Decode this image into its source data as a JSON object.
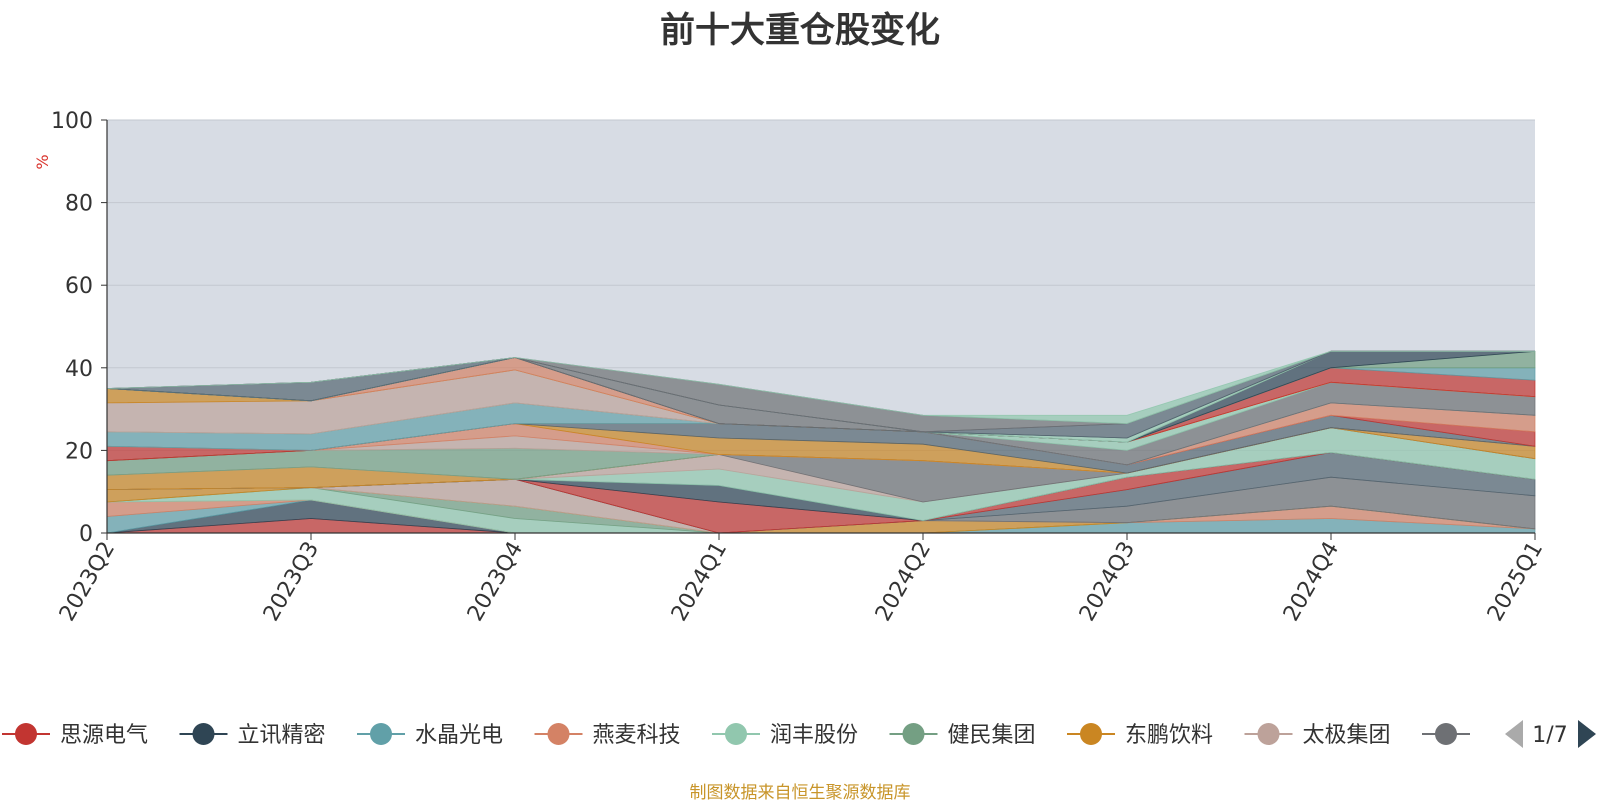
{
  "chart_data": {
    "type": "area",
    "title": "前十大重仓股变化",
    "ylabel": "%",
    "ylim": [
      0,
      100
    ],
    "yticks": [
      0,
      20,
      40,
      60,
      80,
      100
    ],
    "categories": [
      "2023Q2",
      "2023Q3",
      "2023Q4",
      "2024Q1",
      "2024Q2",
      "2024Q3",
      "2024Q4",
      "2025Q1"
    ],
    "series": [
      {
        "name": "思源电气",
        "color": "#c23531",
        "values": [
          0,
          3.5,
          0,
          0,
          0,
          0,
          0,
          0
        ]
      },
      {
        "name": "立讯精密",
        "color": "#2f4554",
        "values": [
          0,
          4.5,
          0,
          0,
          0,
          0,
          0,
          0
        ]
      },
      {
        "name": "水晶光电",
        "color": "#61a0a8",
        "values": [
          4,
          0,
          0,
          0,
          0,
          2.5,
          3.5,
          1
        ]
      },
      {
        "name": "燕麦科技",
        "color": "#d48265",
        "values": [
          3.5,
          0,
          0,
          0,
          0,
          0,
          3,
          0
        ]
      },
      {
        "name": "润丰股份",
        "color": "#91c7ae",
        "values": [
          0,
          3,
          3.5,
          0,
          0,
          0,
          0,
          0
        ]
      },
      {
        "name": "健民集团",
        "color": "#749f83",
        "values": [
          0,
          0,
          3,
          0,
          0,
          0,
          0,
          0
        ]
      },
      {
        "name": "东鹏饮料",
        "color": "#ca8622",
        "values": [
          3,
          0,
          0,
          0,
          3,
          0,
          0,
          0
        ]
      },
      {
        "name": "太极集团",
        "color": "#bda29a",
        "values": [
          0,
          0,
          6.5,
          0,
          0,
          0,
          0,
          0
        ]
      },
      {
        "name": "",
        "color": "#6e7074",
        "values": [
          0,
          0,
          0,
          0,
          0,
          4,
          7,
          8
        ]
      },
      {
        "name": "",
        "color": "#546570",
        "values": [
          0,
          0,
          0,
          0,
          0,
          4,
          6,
          4
        ]
      },
      {
        "name": "",
        "color": "#c23531",
        "values": [
          0,
          0,
          0,
          7.5,
          0,
          3,
          0,
          0
        ]
      },
      {
        "name": "",
        "color": "#2f4554",
        "values": [
          0,
          0,
          0,
          4,
          0,
          0,
          0,
          0
        ]
      },
      {
        "name": "",
        "color": "#91c7ae",
        "values": [
          0,
          0,
          0,
          4,
          4.5,
          1,
          6,
          5
        ]
      },
      {
        "name": "",
        "color": "#bda29a",
        "values": [
          0,
          0,
          0,
          3.5,
          0,
          0,
          0,
          0
        ]
      },
      {
        "name": "",
        "color": "#6e7074",
        "values": [
          0,
          0,
          0,
          0,
          10,
          0,
          0,
          0
        ]
      },
      {
        "name": "",
        "color": "#ca8622",
        "values": [
          3.5,
          5,
          0,
          0,
          0,
          0,
          0,
          3
        ]
      },
      {
        "name": "",
        "color": "#bda29a",
        "values": [
          0,
          0,
          0,
          0,
          0,
          0,
          0,
          0
        ]
      },
      {
        "name": "",
        "color": "#749f83",
        "values": [
          3.5,
          4,
          7.5,
          0,
          0,
          0,
          0,
          0
        ]
      },
      {
        "name": "",
        "color": "#bda29a",
        "values": [
          0,
          0,
          3,
          0,
          0,
          0,
          0,
          0
        ]
      },
      {
        "name": "",
        "color": "#d48265",
        "values": [
          0,
          0,
          3,
          0,
          0,
          0,
          0,
          0
        ]
      },
      {
        "name": "",
        "color": "#ca8622",
        "values": [
          0,
          0,
          0,
          4,
          4,
          0,
          0,
          0
        ]
      },
      {
        "name": "",
        "color": "#546570",
        "values": [
          0,
          0,
          0,
          3.5,
          3,
          2,
          3,
          0
        ]
      },
      {
        "name": "",
        "color": "#c23531",
        "values": [
          3.5,
          0,
          0,
          0,
          0,
          0,
          0,
          3.5
        ]
      },
      {
        "name": "",
        "color": "#d48265",
        "values": [
          0,
          0,
          0,
          0,
          0,
          0,
          3,
          4
        ]
      },
      {
        "name": "",
        "color": "#61a0a8",
        "values": [
          3.5,
          4,
          5,
          0,
          0,
          0,
          0,
          0
        ]
      },
      {
        "name": "",
        "color": "#6e7074",
        "values": [
          0,
          0,
          0,
          0,
          0,
          3.5,
          5,
          4.5
        ]
      },
      {
        "name": "",
        "color": "#91c7ae",
        "values": [
          0,
          0,
          0,
          0,
          0,
          2,
          0,
          0
        ]
      },
      {
        "name": "",
        "color": "#bda29a",
        "values": [
          7,
          8,
          8,
          0,
          0,
          0,
          0,
          0
        ]
      },
      {
        "name": "",
        "color": "#ca8622",
        "values": [
          3.5,
          0,
          0,
          0,
          0,
          0,
          0,
          0
        ]
      },
      {
        "name": "",
        "color": "#d48265",
        "values": [
          0,
          0,
          3,
          0,
          0,
          0,
          0,
          0
        ]
      },
      {
        "name": "",
        "color": "#c23531",
        "values": [
          0,
          0,
          0,
          0,
          0,
          0,
          3.5,
          4
        ]
      },
      {
        "name": "",
        "color": "#61a0a8",
        "values": [
          0,
          0,
          0,
          0,
          0,
          0,
          0,
          3
        ]
      },
      {
        "name": "",
        "color": "#749f83",
        "values": [
          0,
          0,
          0,
          0,
          0,
          0,
          0,
          4
        ]
      },
      {
        "name": "",
        "color": "#2f4554",
        "values": [
          0,
          0,
          0,
          0,
          0,
          0,
          4,
          0
        ]
      },
      {
        "name": "",
        "color": "#6e7074",
        "values": [
          0,
          0,
          0,
          4.5,
          0,
          0,
          0,
          0
        ]
      },
      {
        "name": "",
        "color": "#91c7ae",
        "values": [
          0,
          0,
          0,
          0,
          0,
          1,
          0,
          0
        ]
      },
      {
        "name": "",
        "color": "#546570",
        "values": [
          0,
          4.5,
          0,
          0,
          0,
          0,
          0,
          0
        ]
      },
      {
        "name": "",
        "color": "#546570",
        "values": [
          0,
          0,
          0,
          0,
          0,
          3.5,
          0,
          0
        ]
      },
      {
        "name": "",
        "color": "#6e7074",
        "values": [
          0,
          0,
          0,
          5,
          4,
          0,
          0,
          0
        ]
      },
      {
        "name": "",
        "color": "#91c7ae",
        "values": [
          0,
          0,
          0,
          0,
          0,
          2,
          0,
          0
        ]
      }
    ],
    "stacked": true,
    "plot_background": "#d7dce4",
    "grid": true,
    "legend": {
      "position": "bottom",
      "page": "1/7"
    },
    "source": "制图数据来自恒生聚源数据库"
  }
}
